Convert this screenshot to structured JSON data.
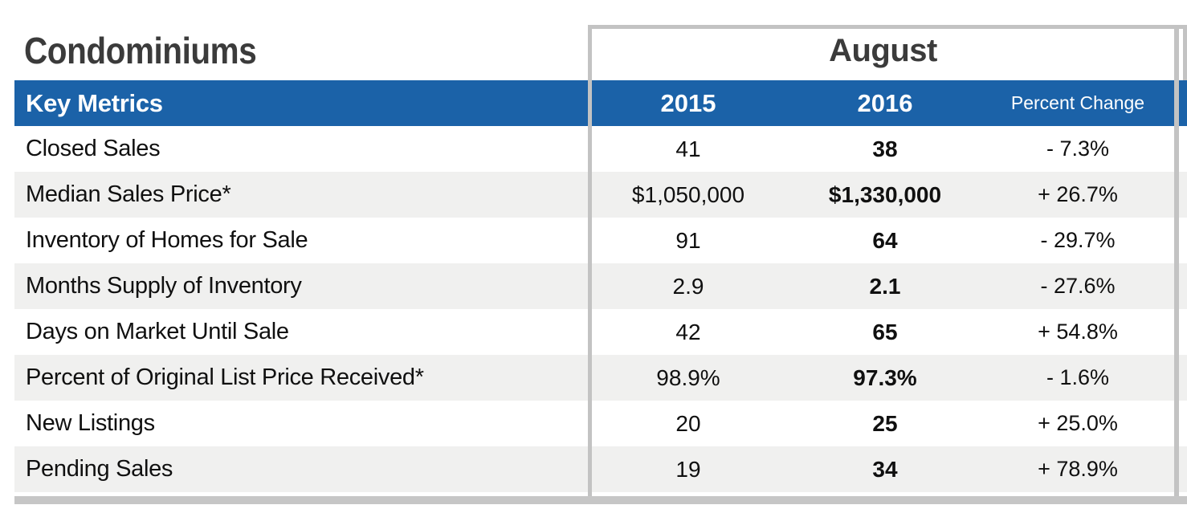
{
  "table": {
    "section_title": "Condominiums",
    "period_header": "August",
    "key_metrics_label": "Key Metrics",
    "columns": [
      "2015",
      "2016",
      "Percent Change"
    ],
    "rows": [
      {
        "label": "Closed Sales",
        "y2015": "41",
        "y2016": "38",
        "change": "- 7.3%"
      },
      {
        "label": "Median Sales Price*",
        "y2015": "$1,050,000",
        "y2016": "$1,330,000",
        "change": "+ 26.7%"
      },
      {
        "label": "Inventory of Homes for Sale",
        "y2015": "91",
        "y2016": "64",
        "change": "- 29.7%"
      },
      {
        "label": "Months Supply of Inventory",
        "y2015": "2.9",
        "y2016": "2.1",
        "change": "- 27.6%"
      },
      {
        "label": "Days on Market Until Sale",
        "y2015": "42",
        "y2016": "65",
        "change": "+ 54.8%"
      },
      {
        "label": "Percent of Original List Price Received*",
        "y2015": "98.9%",
        "y2016": "97.3%",
        "change": "- 1.6%"
      },
      {
        "label": "New Listings",
        "y2015": "20",
        "y2016": "25",
        "change": "+ 25.0%"
      },
      {
        "label": "Pending Sales",
        "y2015": "19",
        "y2016": "34",
        "change": "+ 78.9%"
      }
    ],
    "colors": {
      "header_blue": "#1b62a8",
      "stripe_gray": "#f0f0ef",
      "border_gray": "#c3c3c3",
      "title_text": "#3b3b3b"
    }
  }
}
